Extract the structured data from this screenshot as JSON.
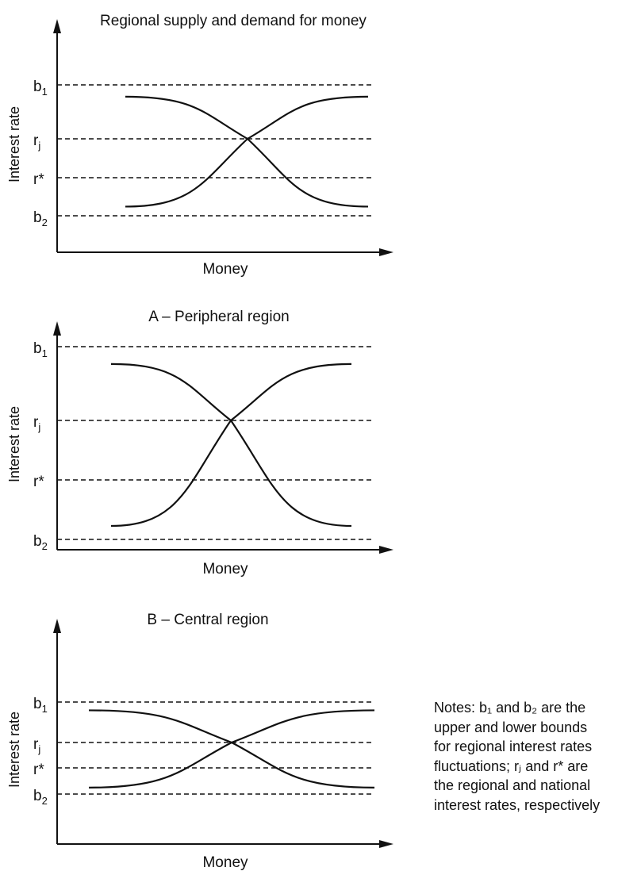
{
  "panels": [
    {
      "title": "Regional supply and demand for money",
      "y_label": "Interest rate",
      "x_label": "Money",
      "levels": [
        {
          "base": "b",
          "sub": "1"
        },
        {
          "base": "r",
          "sub": "j"
        },
        {
          "base": "r*",
          "sub": ""
        },
        {
          "base": "b",
          "sub": "2"
        }
      ]
    },
    {
      "title": "A – Peripheral region",
      "y_label": "Interest rate",
      "x_label": "Money",
      "levels": [
        {
          "base": "b",
          "sub": "1"
        },
        {
          "base": "r",
          "sub": "j"
        },
        {
          "base": "r*",
          "sub": ""
        },
        {
          "base": "b",
          "sub": "2"
        }
      ]
    },
    {
      "title": "B – Central region",
      "y_label": "Interest rate",
      "x_label": "Money",
      "levels": [
        {
          "base": "b",
          "sub": "1"
        },
        {
          "base": "r",
          "sub": "j"
        },
        {
          "base": "r*",
          "sub": ""
        },
        {
          "base": "b",
          "sub": "2"
        }
      ]
    }
  ],
  "notes": {
    "lines": [
      "Notes: b₁ and b₂ are the",
      "upper and lower bounds",
      "for regional interest rates",
      "fluctuations; rⱼ and r* are",
      "the regional and national",
      "interest rates, respectively"
    ]
  },
  "colors": {
    "ink": "#111111",
    "background": "#ffffff"
  }
}
